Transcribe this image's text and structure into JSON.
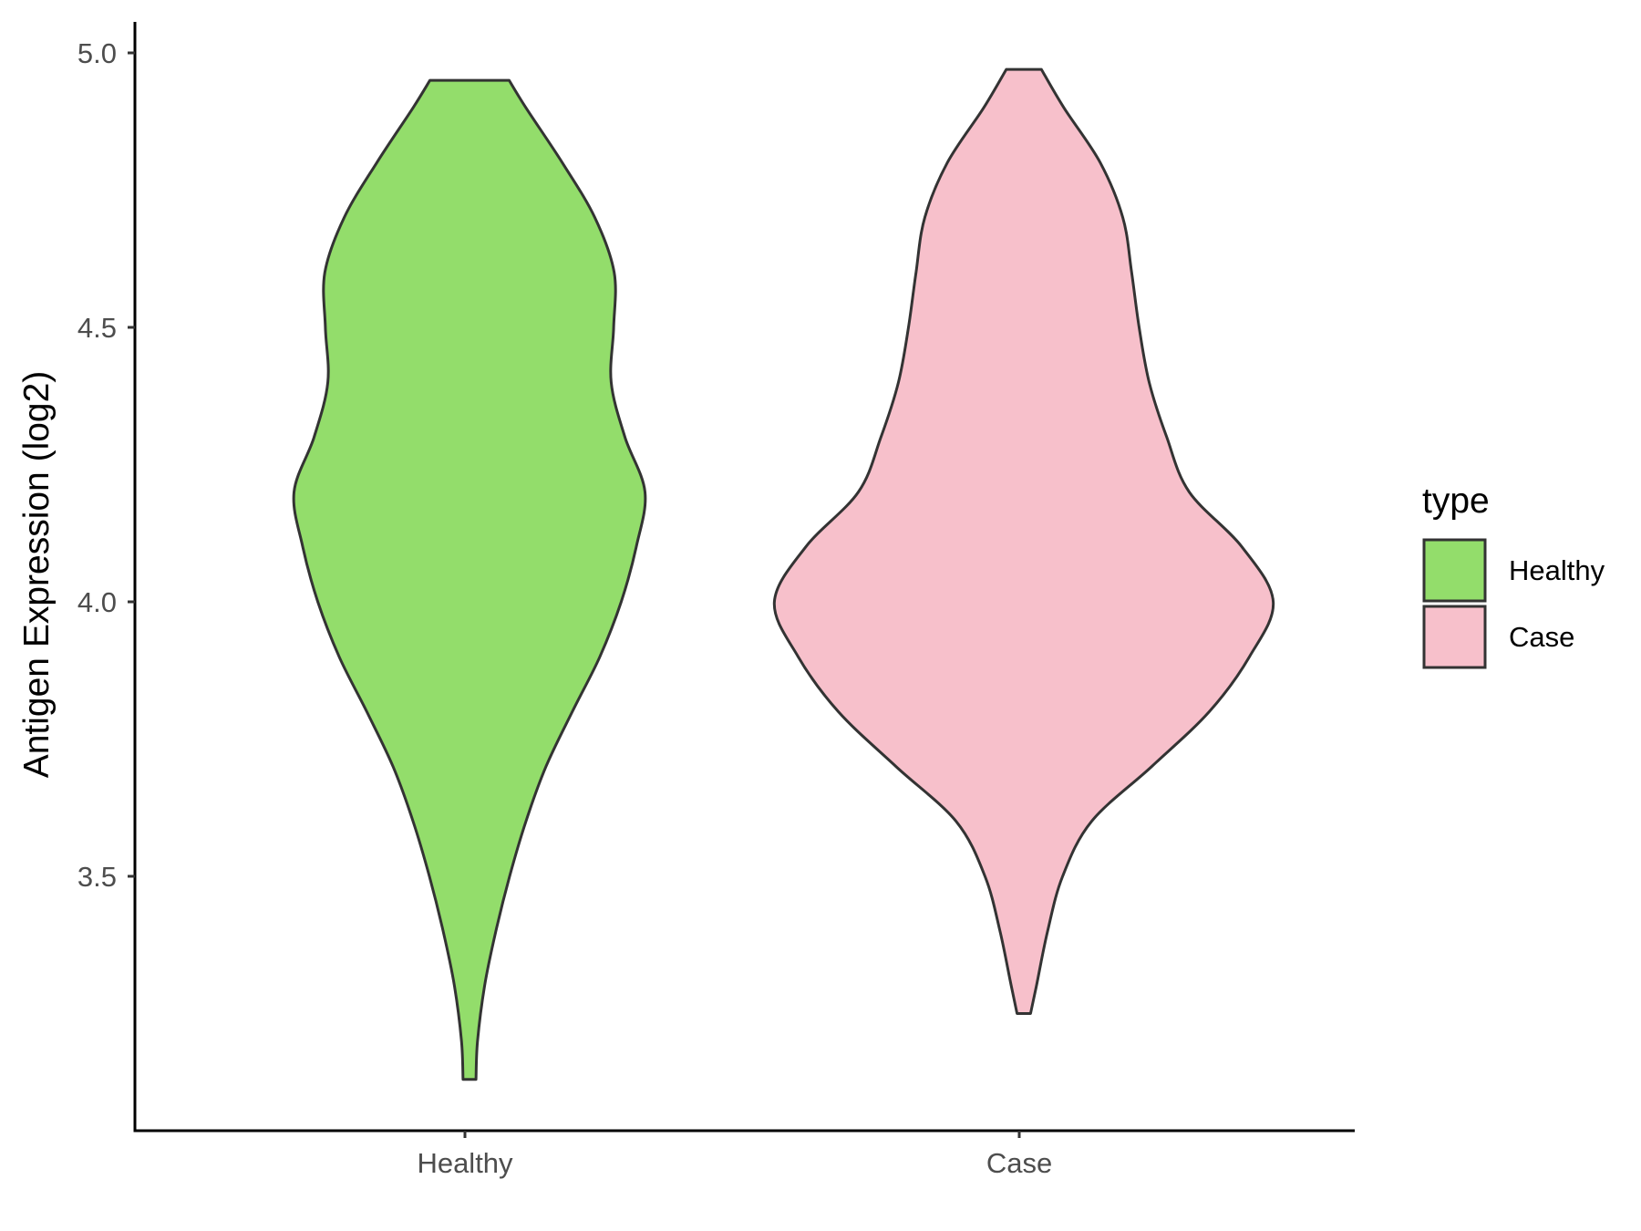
{
  "chart_data": {
    "type": "violin",
    "categories": [
      "Healthy",
      "Case"
    ],
    "ylabel": "Antigen Expression (log2)",
    "xlabel": "",
    "ylim": [
      3.03,
      5.06
    ],
    "yticks": [
      "3.5",
      "4.0",
      "4.5",
      "5.0"
    ],
    "legend": {
      "title": "type",
      "placement": "right",
      "entries": [
        {
          "label": "Healthy",
          "color": "#93dd6b"
        },
        {
          "label": "Case",
          "color": "#f7c0cb"
        }
      ]
    },
    "series": [
      {
        "name": "Healthy",
        "color": "#93dd6b",
        "min": 3.13,
        "max": 4.95,
        "profile": [
          [
            3.13,
            0.026
          ],
          [
            3.2,
            0.032
          ],
          [
            3.3,
            0.06
          ],
          [
            3.4,
            0.105
          ],
          [
            3.5,
            0.16
          ],
          [
            3.6,
            0.225
          ],
          [
            3.7,
            0.305
          ],
          [
            3.8,
            0.41
          ],
          [
            3.9,
            0.52
          ],
          [
            4.0,
            0.605
          ],
          [
            4.1,
            0.665
          ],
          [
            4.2,
            0.7
          ],
          [
            4.3,
            0.62
          ],
          [
            4.4,
            0.565
          ],
          [
            4.5,
            0.575
          ],
          [
            4.6,
            0.577
          ],
          [
            4.7,
            0.5
          ],
          [
            4.8,
            0.37
          ],
          [
            4.9,
            0.225
          ],
          [
            4.95,
            0.158
          ]
        ]
      },
      {
        "name": "Case",
        "color": "#f7c0cb",
        "min": 3.25,
        "max": 4.97,
        "profile": [
          [
            3.25,
            0.027
          ],
          [
            3.3,
            0.05
          ],
          [
            3.4,
            0.095
          ],
          [
            3.5,
            0.155
          ],
          [
            3.6,
            0.27
          ],
          [
            3.7,
            0.51
          ],
          [
            3.8,
            0.74
          ],
          [
            3.9,
            0.9
          ],
          [
            4.0,
            0.995
          ],
          [
            4.1,
            0.87
          ],
          [
            4.2,
            0.66
          ],
          [
            4.3,
            0.57
          ],
          [
            4.4,
            0.5
          ],
          [
            4.5,
            0.46
          ],
          [
            4.6,
            0.43
          ],
          [
            4.7,
            0.395
          ],
          [
            4.8,
            0.305
          ],
          [
            4.9,
            0.16
          ],
          [
            4.97,
            0.07
          ]
        ]
      }
    ]
  }
}
